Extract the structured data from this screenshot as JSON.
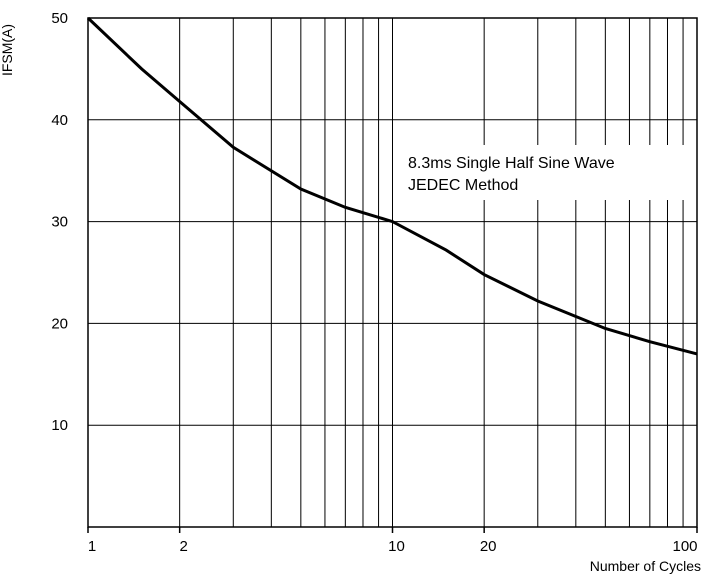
{
  "chart_data": {
    "type": "line",
    "title": "",
    "xlabel": "Number of Cycles",
    "ylabel": "IFSM(A)",
    "x_scale": "log",
    "xlim": [
      1,
      100
    ],
    "ylim": [
      0,
      50
    ],
    "x_ticks": [
      1,
      2,
      10,
      20,
      100
    ],
    "y_ticks": [
      10,
      20,
      30,
      40,
      50
    ],
    "grid": true,
    "annotation": [
      "8.3ms Single Half Sine Wave",
      "JEDEC Method"
    ],
    "series": [
      {
        "x": [
          1,
          1.5,
          2,
          3,
          5,
          7,
          10,
          15,
          20,
          30,
          50,
          70,
          100
        ],
        "y": [
          50,
          45,
          41.8,
          37.3,
          33.2,
          31.4,
          30,
          27.2,
          24.8,
          22.2,
          19.5,
          18.2,
          17
        ]
      }
    ]
  }
}
